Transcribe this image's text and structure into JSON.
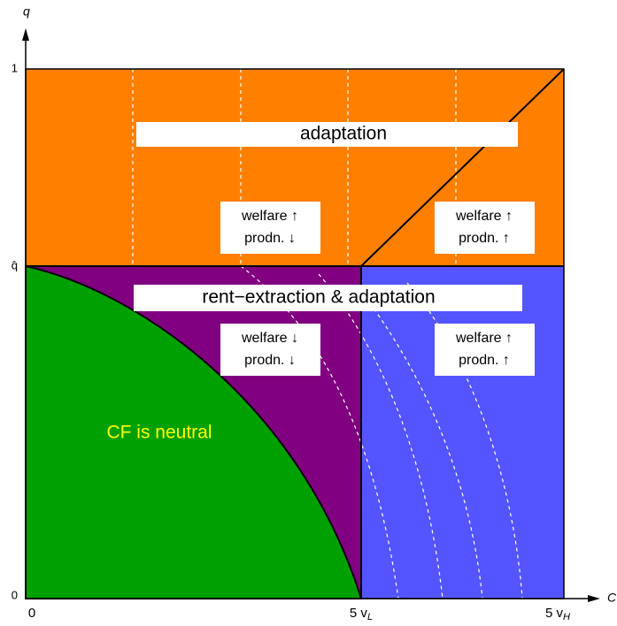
{
  "axes": {
    "y_label": "q",
    "x_label": "C",
    "y_ticks": [
      "1",
      "q̂",
      "0"
    ],
    "x_ticks": [
      {
        "text": "0"
      },
      {
        "text": "5 v",
        "sub": "L"
      },
      {
        "text": "5 v",
        "sub": "H"
      }
    ]
  },
  "regions": {
    "top": "adaptation",
    "middle": "rent−extraction & adaptation",
    "green": "CF is neutral"
  },
  "boxes": [
    {
      "line1": "welfare  ↑",
      "line2": "prodn.  ↓"
    },
    {
      "line1": "welfare  ↑",
      "line2": "prodn.  ↑"
    },
    {
      "line1": "welfare  ↓",
      "line2": "prodn.  ↓"
    },
    {
      "line1": "welfare  ↑",
      "line2": "prodn.  ↑"
    }
  ]
}
